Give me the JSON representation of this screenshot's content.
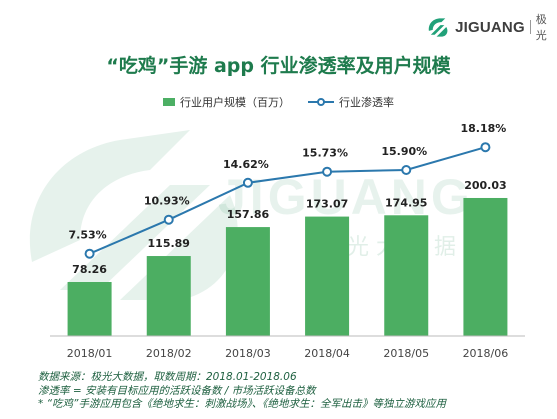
{
  "brand": {
    "name": "JIGUANG",
    "name_cn": "极光",
    "accent": "#21a179"
  },
  "watermark": {
    "text": "JIGUANG",
    "text_cn": "极 光 大 数 据"
  },
  "colors": {
    "bar": "#4cae62",
    "line": "#2b78ad",
    "title": "#1e7b4d"
  },
  "chart_data": {
    "type": "bar",
    "title": "“吃鸡”手游 app 行业渗透率及用户规模",
    "categories": [
      "2018/01",
      "2018/02",
      "2018/03",
      "2018/04",
      "2018/05",
      "2018/06"
    ],
    "series": [
      {
        "name": "行业用户规模（百万）",
        "type": "bar",
        "values": [
          78.26,
          115.89,
          157.86,
          173.07,
          174.95,
          200.03
        ],
        "labels": [
          "78.26",
          "115.89",
          "157.86",
          "173.07",
          "174.95",
          "200.03"
        ]
      },
      {
        "name": "行业渗透率",
        "type": "line",
        "values": [
          7.53,
          10.93,
          14.62,
          15.73,
          15.9,
          18.18
        ],
        "labels": [
          "7.53%",
          "10.93%",
          "14.62%",
          "15.73%",
          "15.90%",
          "18.18%"
        ]
      }
    ],
    "legend": "top-center",
    "grid": false
  },
  "notes": [
    "数据来源：极光大数据，取数周期：2018.01-2018.06",
    "渗透率 = 安装有目标应用的活跃设备数 / 市场活跃设备总数",
    "* “吃鸡”手游应用包含《绝地求生：刺激战场》、《绝地求生：全军出击》等独立游戏应用"
  ]
}
